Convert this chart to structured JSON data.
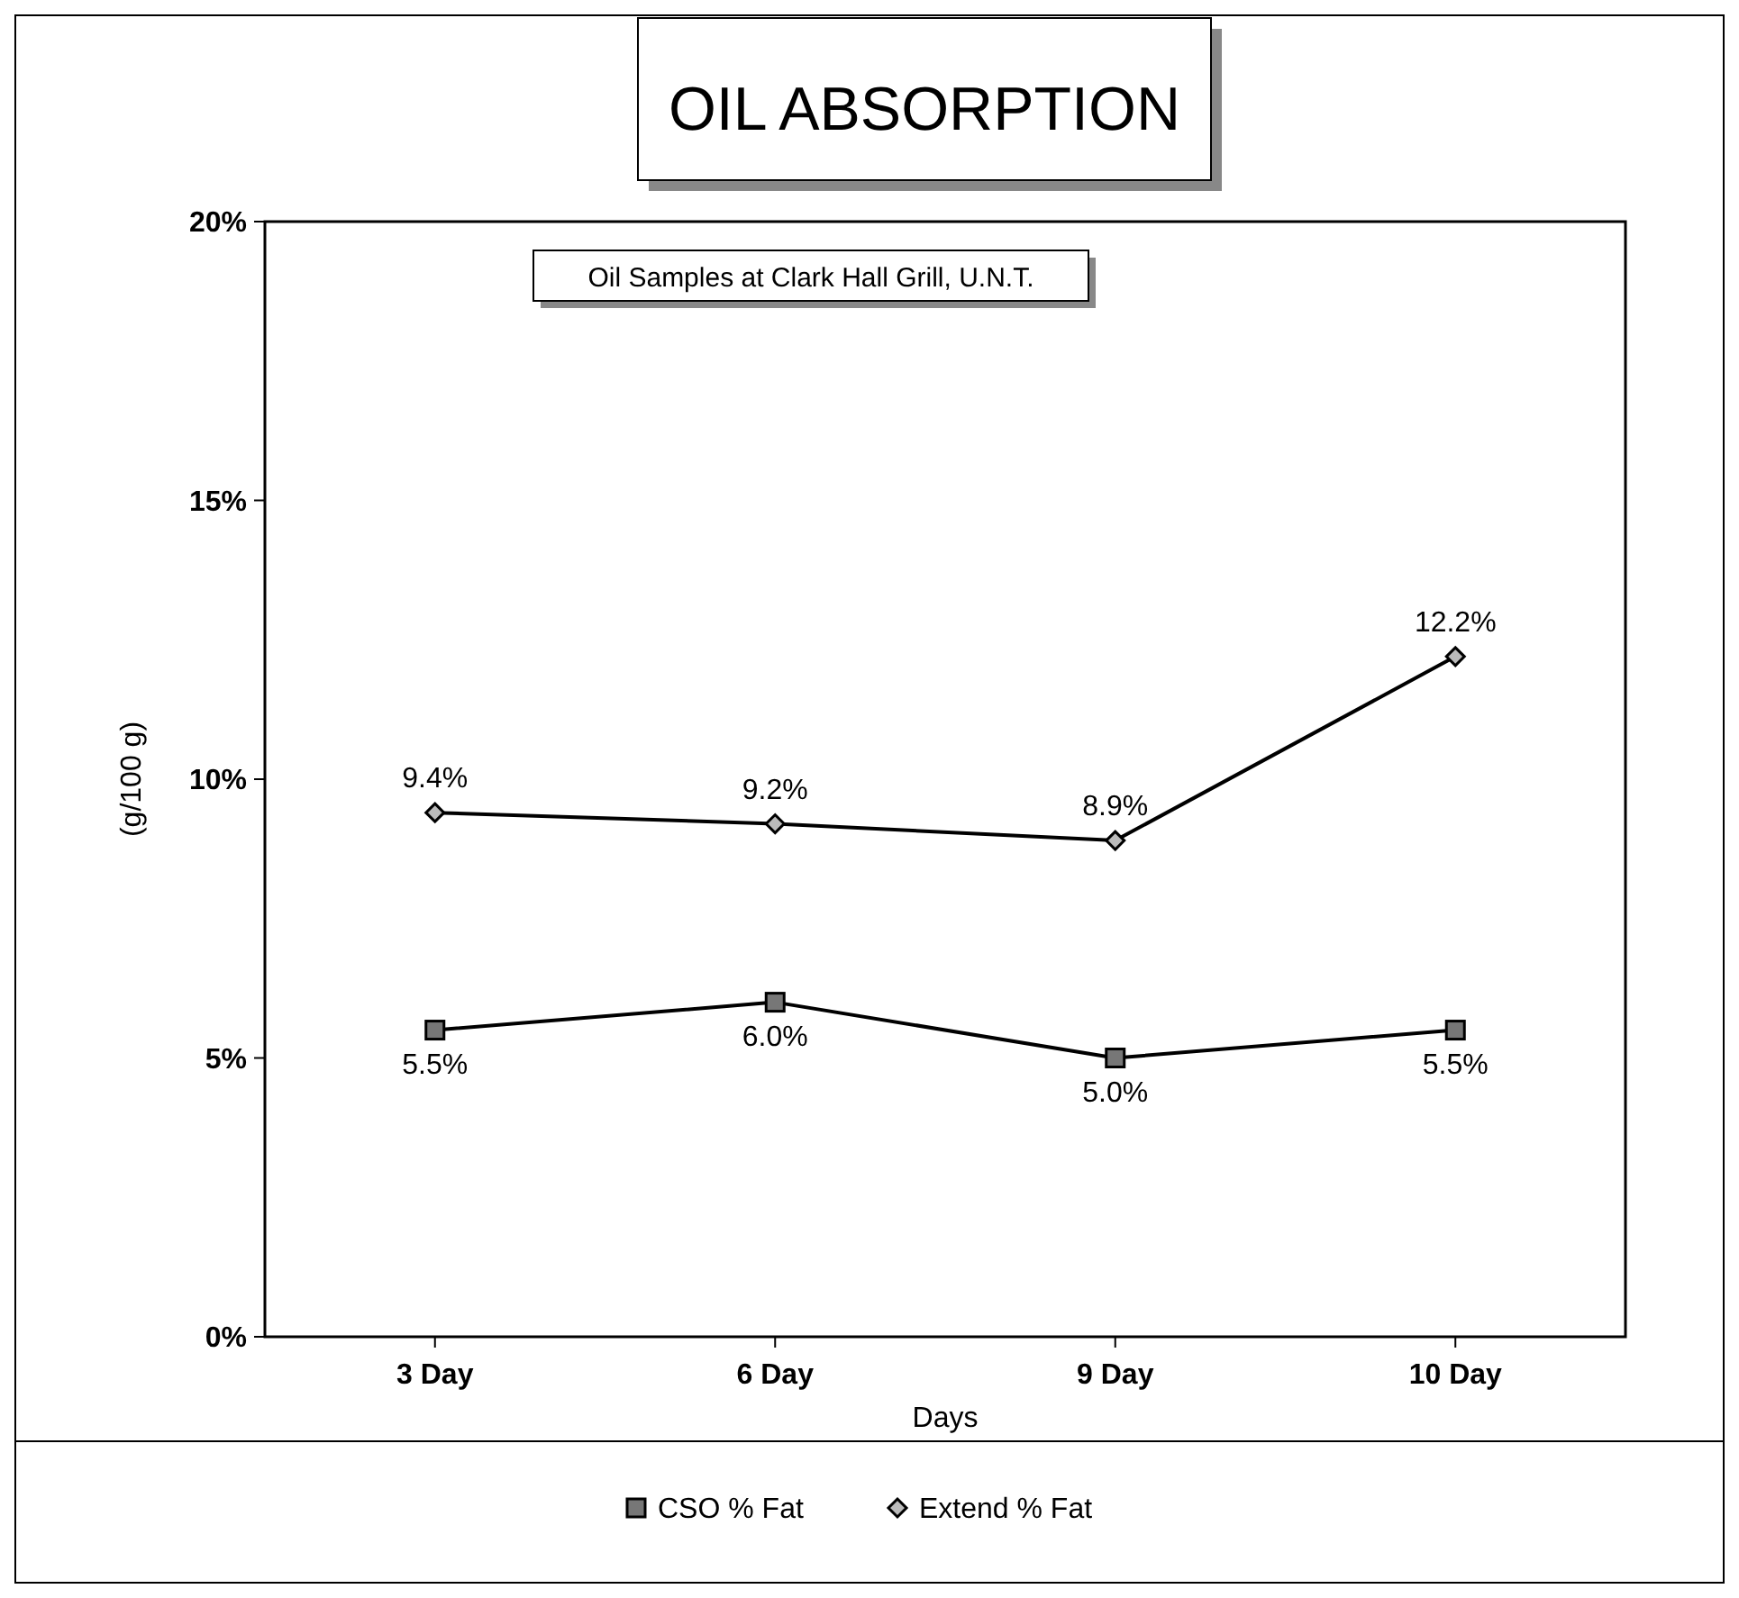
{
  "chart_data": {
    "type": "line",
    "title": "OIL ABSORPTION",
    "subtitle": "Oil Samples at Clark Hall Grill, U.N.T.",
    "xlabel": "Days",
    "ylabel": "(g/100 g)",
    "categories": [
      "3 Day",
      "6 Day",
      "9 Day",
      "10 Day"
    ],
    "series": [
      {
        "name": "CSO % Fat",
        "color": "#000000",
        "marker": "square",
        "values": [
          5.5,
          6.0,
          5.0,
          5.5
        ],
        "value_labels": [
          "5.5%",
          "6.0%",
          "5.0%",
          "5.5%"
        ]
      },
      {
        "name": "Extend % Fat",
        "color": "#000000",
        "marker": "diamond",
        "values": [
          9.4,
          9.2,
          8.9,
          12.2
        ],
        "value_labels": [
          "9.4%",
          "9.2%",
          "8.9%",
          "12.2%"
        ]
      }
    ],
    "ylim": [
      0,
      20
    ],
    "yticks": [
      {
        "value": 0,
        "label": "0%"
      },
      {
        "value": 5,
        "label": "5%"
      },
      {
        "value": 10,
        "label": "10%"
      },
      {
        "value": 15,
        "label": "15%"
      },
      {
        "value": 20,
        "label": "20%"
      }
    ],
    "grid": false,
    "legend": "bottom",
    "line_style": "solid"
  }
}
